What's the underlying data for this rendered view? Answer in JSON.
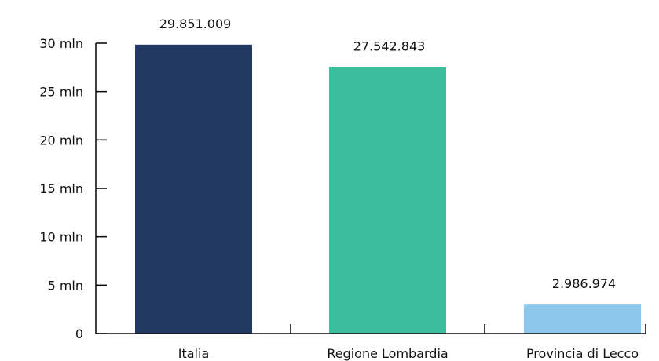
{
  "colors": {
    "italia": "#223A63",
    "lombardia": "#3DBD9C",
    "lecco": "#8EC7ED",
    "axis": "#111111",
    "text": "#111111",
    "background": "#FFFFFF"
  },
  "chart_data": {
    "type": "bar",
    "title": "",
    "xlabel": "",
    "ylabel": "",
    "ylim": [
      0,
      30000000
    ],
    "grid": false,
    "legend": "none",
    "categories": [
      "Italia",
      "Regione Lombardia",
      "Provincia di Lecco"
    ],
    "values": [
      29851009,
      27542843,
      2986974
    ],
    "value_labels": [
      "29.851.009",
      "27.542.843",
      "2.986.974"
    ],
    "y_ticks": [
      {
        "value": 0,
        "label": "0"
      },
      {
        "value": 5000000,
        "label": "5 mln"
      },
      {
        "value": 10000000,
        "label": "10 mln"
      },
      {
        "value": 15000000,
        "label": "15 mln"
      },
      {
        "value": 20000000,
        "label": "20 mln"
      },
      {
        "value": 25000000,
        "label": "25 mln"
      },
      {
        "value": 30000000,
        "label": "30 mln"
      }
    ],
    "bar_colors": [
      "#223A63",
      "#3DBD9C",
      "#8EC7ED"
    ]
  }
}
